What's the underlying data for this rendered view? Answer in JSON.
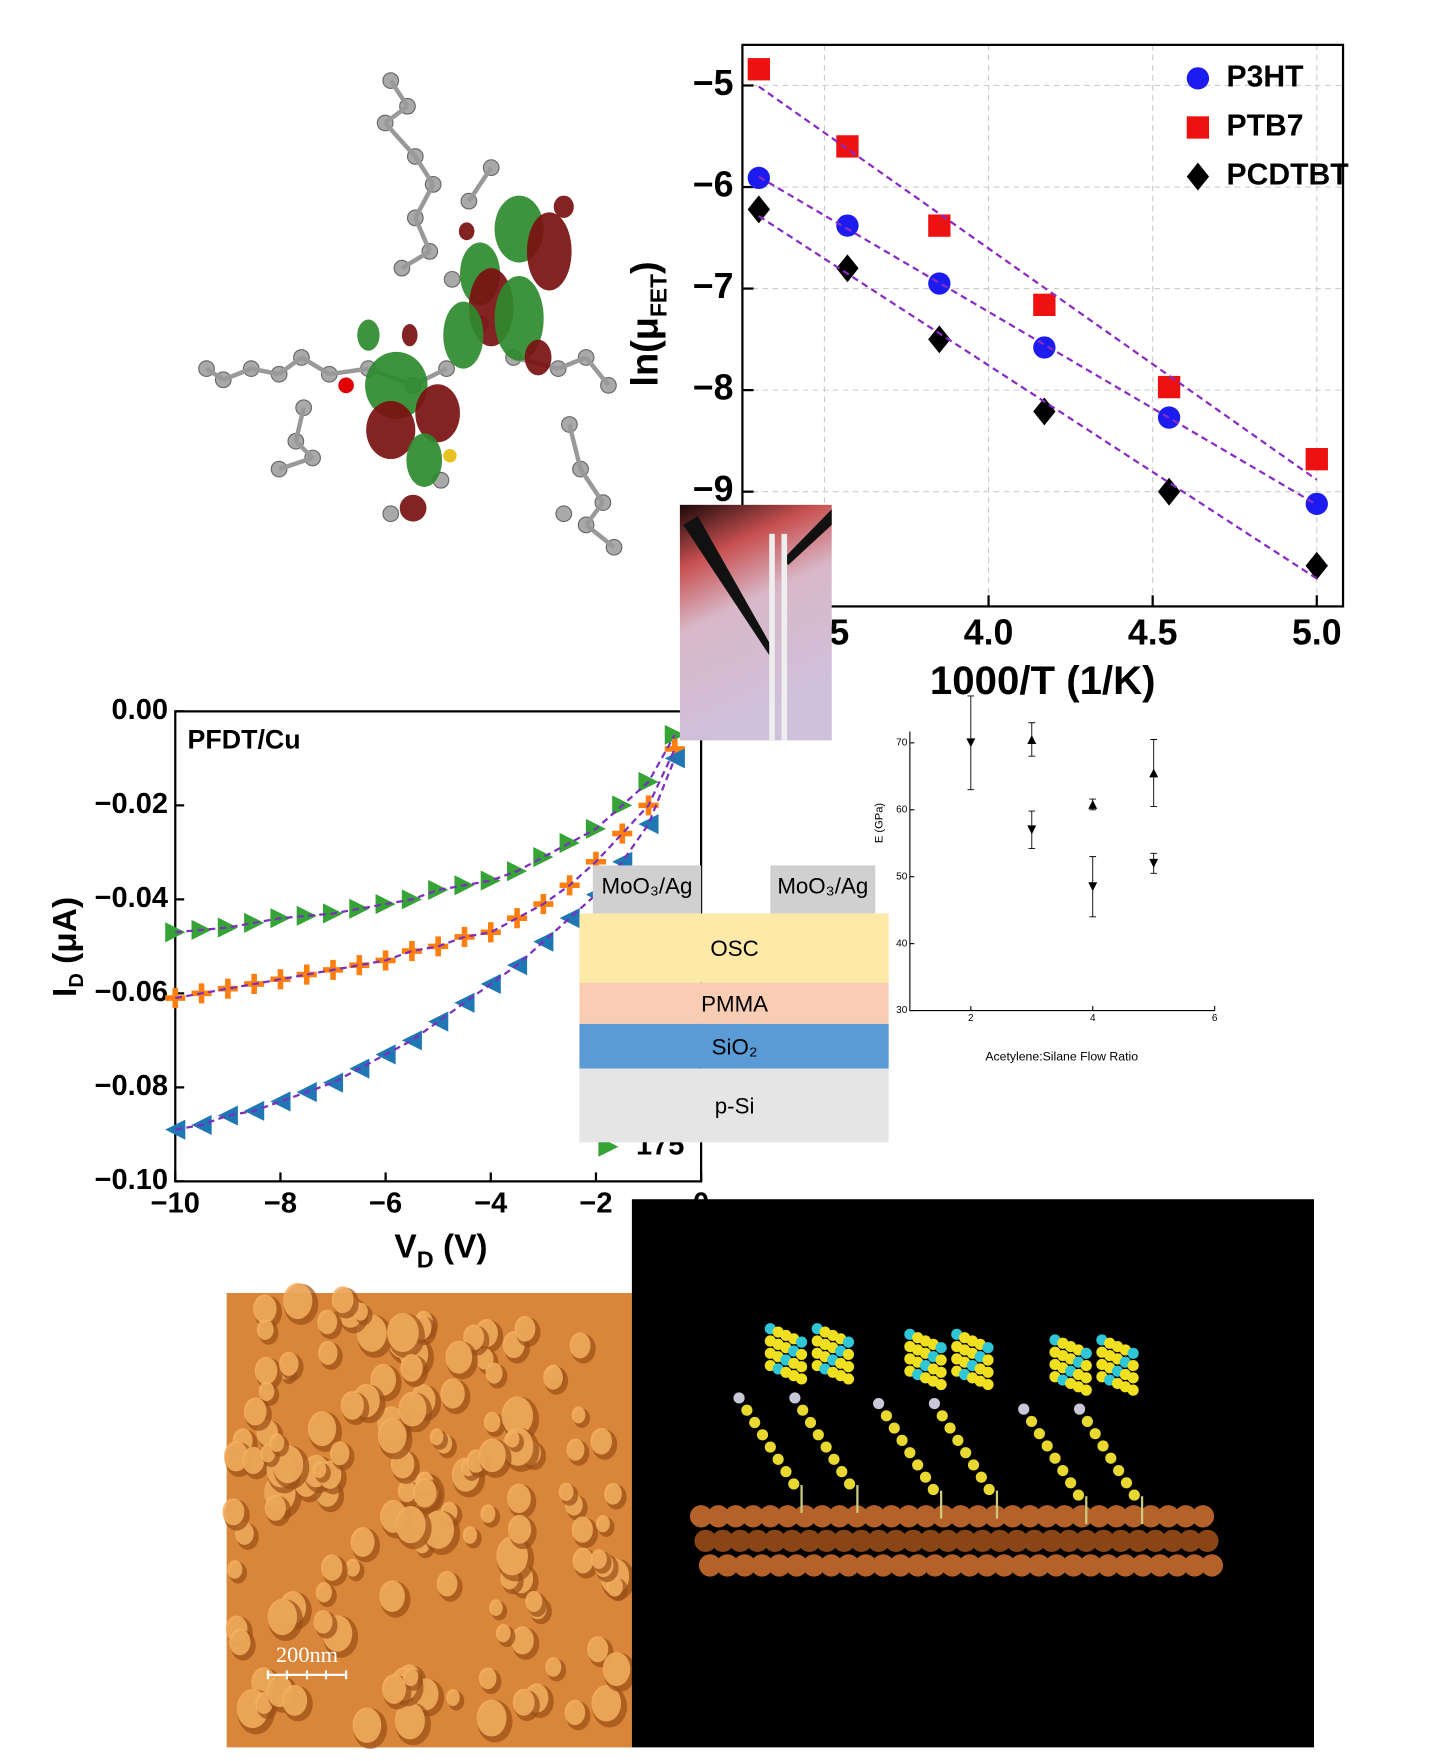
{
  "chart_data": [
    {
      "type": "scatter",
      "xlabel": "1000/T (1/K)",
      "ylabel": [
        "ln(μ",
        "FET",
        ")"
      ],
      "x": [
        3.3,
        3.57,
        3.85,
        4.17,
        4.55,
        5.0
      ],
      "series": [
        {
          "name": "P3HT",
          "color": "#1c1cf0",
          "marker": "circle",
          "values": [
            -5.91,
            -6.38,
            -6.95,
            -7.58,
            -8.27,
            -9.12
          ]
        },
        {
          "name": "PTB7",
          "color": "#ee1111",
          "marker": "square",
          "values": [
            -4.84,
            -5.6,
            -6.38,
            -7.16,
            -7.97,
            -8.68
          ]
        },
        {
          "name": "PCDTBT",
          "color": "#000000",
          "marker": "diamond",
          "values": [
            -6.22,
            -6.8,
            -7.5,
            -8.21,
            -9.0,
            -9.73
          ]
        }
      ],
      "fit": "linear",
      "fit_color": "#8a2bc2",
      "xlim": [
        3.25,
        5.08
      ],
      "ylim": [
        -10.13,
        -4.6
      ],
      "xticks": [
        {
          "value": 3.5,
          "label": "3.5"
        },
        {
          "value": 4.0,
          "label": "4.0"
        },
        {
          "value": 4.5,
          "label": "4.5"
        },
        {
          "value": 5.0,
          "label": "5.0"
        }
      ],
      "yticks": [
        {
          "value": -5,
          "label": "−5"
        },
        {
          "value": -6,
          "label": "−6"
        },
        {
          "value": -7,
          "label": "−7"
        },
        {
          "value": -8,
          "label": "−8"
        },
        {
          "value": -9,
          "label": "−9"
        }
      ],
      "grid": true,
      "legend": "upper right"
    },
    {
      "type": "scatter",
      "title": "PFDT/Cu",
      "xlabel": [
        "V",
        "D",
        " (V)"
      ],
      "ylabel": [
        "I",
        "D",
        " (μA)"
      ],
      "x": [
        -10,
        -9.5,
        -9,
        -8.5,
        -8,
        -7.5,
        -7,
        -6.5,
        -6,
        -5.5,
        -5,
        -4.5,
        -4,
        -3.5,
        -3,
        -2.5,
        -2,
        -1.5,
        -1,
        -0.5
      ],
      "series": [
        {
          "name": "175",
          "color": "#35a335",
          "marker": "tri-right",
          "values": [
            -0.047,
            -0.0465,
            -0.046,
            -0.045,
            -0.044,
            -0.0435,
            -0.043,
            -0.042,
            -0.041,
            -0.04,
            -0.038,
            -0.037,
            -0.036,
            -0.034,
            -0.031,
            -0.028,
            -0.025,
            -0.02,
            -0.015,
            -0.005
          ]
        },
        {
          "color": "#ff7f0e",
          "marker": "plus",
          "values": [
            -0.061,
            -0.06,
            -0.059,
            -0.058,
            -0.057,
            -0.056,
            -0.055,
            -0.054,
            -0.053,
            -0.051,
            -0.05,
            -0.048,
            -0.047,
            -0.044,
            -0.041,
            -0.037,
            -0.032,
            -0.026,
            -0.02,
            -0.008
          ]
        },
        {
          "color": "#1f77b4",
          "marker": "tri-left",
          "values": [
            -0.089,
            -0.088,
            -0.086,
            -0.085,
            -0.083,
            -0.081,
            -0.079,
            -0.076,
            -0.073,
            -0.07,
            -0.066,
            -0.062,
            -0.058,
            -0.054,
            -0.049,
            -0.044,
            -0.039,
            -0.032,
            -0.024,
            -0.01
          ]
        }
      ],
      "fit": "curve",
      "fit_color": "#7b2fbe",
      "xlim": [
        -10,
        0
      ],
      "ylim": [
        -0.1,
        0
      ],
      "xticks": [
        {
          "value": -10,
          "label": "−10"
        },
        {
          "value": -8,
          "label": "−8"
        },
        {
          "value": -6,
          "label": "−6"
        },
        {
          "value": -4,
          "label": "−4"
        },
        {
          "value": -2,
          "label": "−2"
        },
        0
      ],
      "yticks": [
        {
          "value": 0,
          "label": "0.00"
        },
        {
          "value": -0.02,
          "label": "−0.02"
        },
        {
          "value": -0.04,
          "label": "−0.04"
        },
        {
          "value": -0.06,
          "label": "−0.06"
        },
        {
          "value": -0.08,
          "label": "−0.08"
        },
        {
          "value": -0.1,
          "label": "−0.10"
        }
      ],
      "grid": false,
      "legend": "lower right"
    },
    {
      "type": "errorbar",
      "xlabel": "Acetylene:Silane Flow Ratio",
      "ylabel": "E (GPa)",
      "series": [
        {
          "color": "#000000",
          "marker": "tri-down",
          "x": [
            2,
            3,
            4,
            5
          ],
          "values": [
            70,
            57,
            48.5,
            52
          ],
          "errors": [
            7,
            2.8,
            4.5,
            1.5
          ]
        },
        {
          "color": "#000000",
          "marker": "tri-up",
          "x": [
            3,
            4,
            5
          ],
          "values": [
            70.5,
            60.8,
            65.5
          ],
          "errors": [
            2.5,
            0.8,
            5
          ]
        }
      ],
      "xlim": [
        1,
        6
      ],
      "ylim": [
        30,
        71.7
      ],
      "xticks": [
        2,
        4,
        6
      ],
      "yticks": [
        30,
        40,
        50,
        60,
        70
      ],
      "grid": false
    }
  ],
  "device_stack": {
    "contacts": [
      "MoO₃/Ag",
      "MoO₃/Ag"
    ],
    "layers": [
      "OSC",
      "PMMA",
      "SiO₂",
      "p-Si"
    ]
  },
  "afm_image": {
    "scale_bar": "200nm"
  }
}
